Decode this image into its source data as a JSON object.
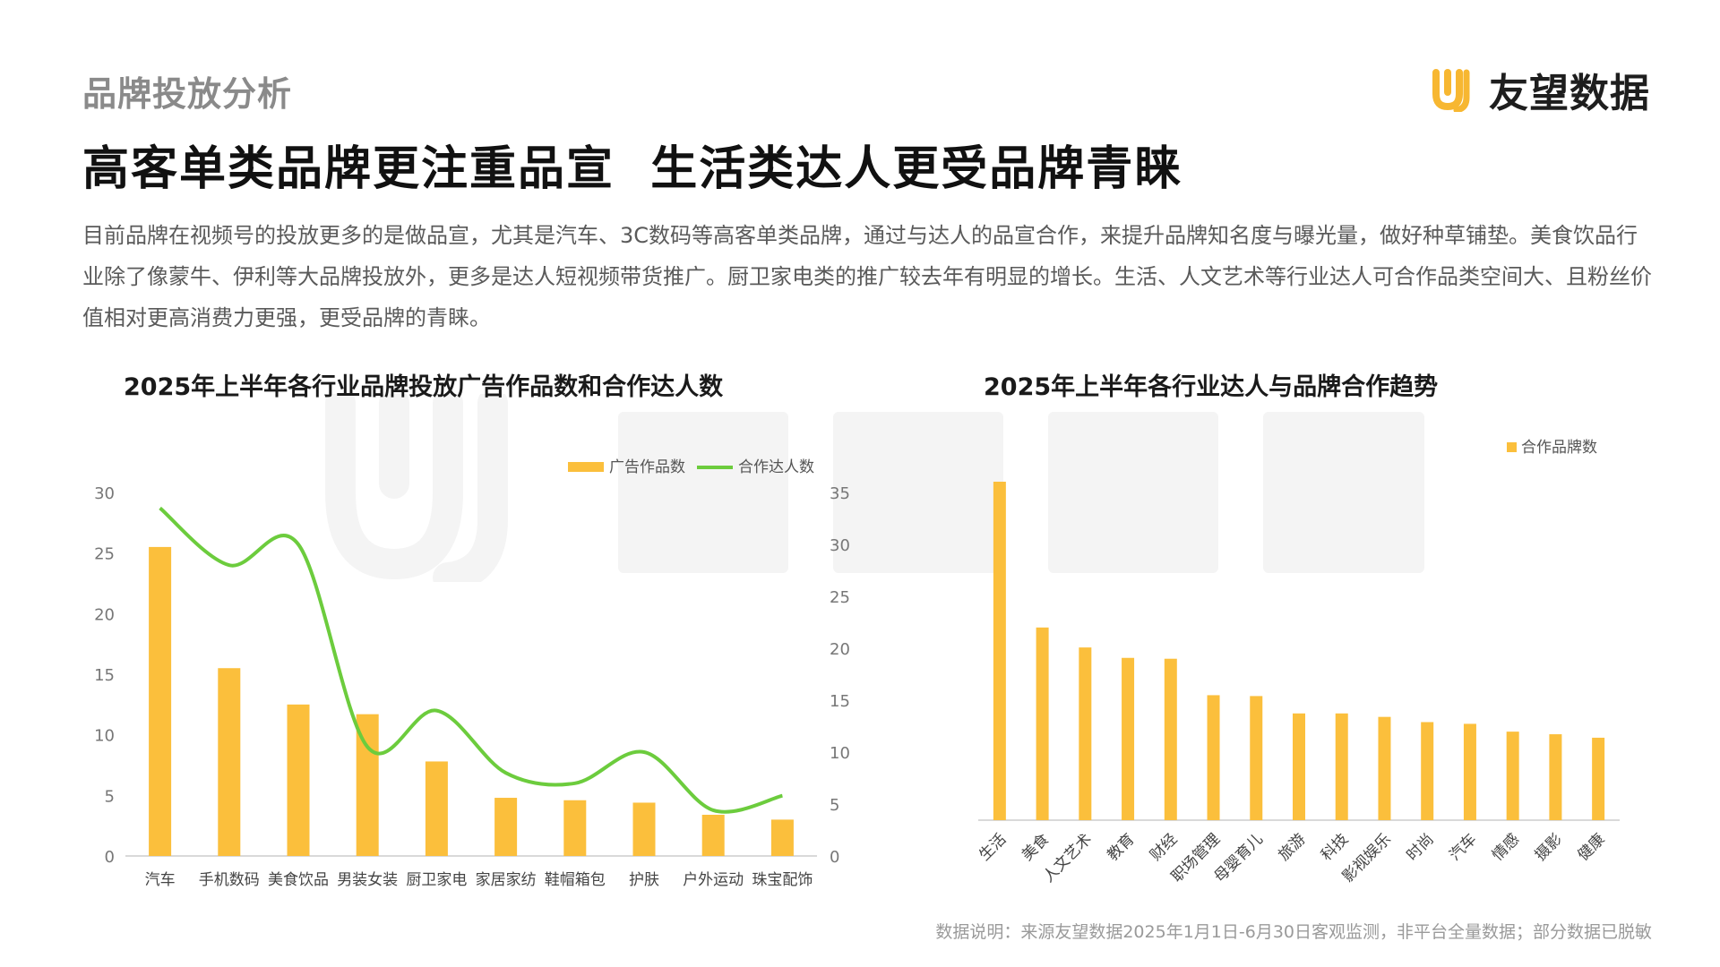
{
  "header": {
    "section_label": "品牌投放分析",
    "logo_text": "友望数据",
    "headline": "高客单类品牌更注重品宣  生活类达人更受品牌青睐",
    "description": "目前品牌在视频号的投放更多的是做品宣，尤其是汽车、3C数码等高客单类品牌，通过与达人的品宣合作，来提升品牌知名度与曝光量，做好种草铺垫。美食饮品行业除了像蒙牛、伊利等大品牌投放外，更多是达人短视频带货推广。厨卫家电类的推广较去年有明显的增长。生活、人文艺术等行业达人可合作品类空间大、且粉丝价值相对更高消费力更强，更受品牌的青睐。"
  },
  "footer": {
    "note": "数据说明：来源友望数据2025年1月1日-6月30日客观监测，非平台全量数据；部分数据已脱敏"
  },
  "colors": {
    "bar": "#fbbf3c",
    "line": "#6ccc3d",
    "axis": "#d9d9d9",
    "tick_text": "#777777",
    "logo_mark": "#f7b731"
  },
  "chart_data": [
    {
      "type": "bar",
      "title": "2025年上半年各行业品牌投放广告作品数和合作达人数",
      "categories": [
        "汽车",
        "手机数码",
        "美食饮品",
        "男装女装",
        "厨卫家电",
        "家居家纺",
        "鞋帽箱包",
        "护肤",
        "户外运动",
        "珠宝配饰"
      ],
      "series": [
        {
          "name": "广告作品数",
          "type": "bar",
          "axis": "left",
          "values": [
            25.5,
            15.5,
            12.5,
            11.7,
            7.8,
            4.8,
            4.6,
            4.4,
            3.4,
            3.0
          ]
        },
        {
          "name": "合作达人数",
          "type": "line",
          "axis": "right",
          "smooth": true,
          "values": [
            33.5,
            28,
            30,
            10.5,
            14,
            8,
            7,
            10,
            4.4,
            5.8
          ]
        }
      ],
      "ylim_left": [
        0,
        30
      ],
      "yticks_left": [
        0,
        5,
        10,
        15,
        20,
        25,
        30
      ],
      "ylim_right": [
        0,
        35
      ],
      "yticks_right": [
        0,
        5,
        10,
        15,
        20,
        25,
        30,
        35
      ],
      "legend": "top-right",
      "grid": false
    },
    {
      "type": "bar",
      "title": "2025年上半年各行业达人与品牌合作趋势",
      "categories": [
        "生活",
        "美食",
        "人文艺术",
        "教育",
        "财经",
        "职场管理",
        "母婴育儿",
        "旅游",
        "科技",
        "影视娱乐",
        "时尚",
        "汽车",
        "情感",
        "摄影",
        "健康"
      ],
      "series": [
        {
          "name": "合作品牌数",
          "values": [
            39,
            22.2,
            19.9,
            18.7,
            18.6,
            14.4,
            14.3,
            12.3,
            12.3,
            11.9,
            11.3,
            11.1,
            10.2,
            9.9,
            9.5
          ]
        }
      ],
      "legend": "top-right",
      "grid": false
    }
  ]
}
